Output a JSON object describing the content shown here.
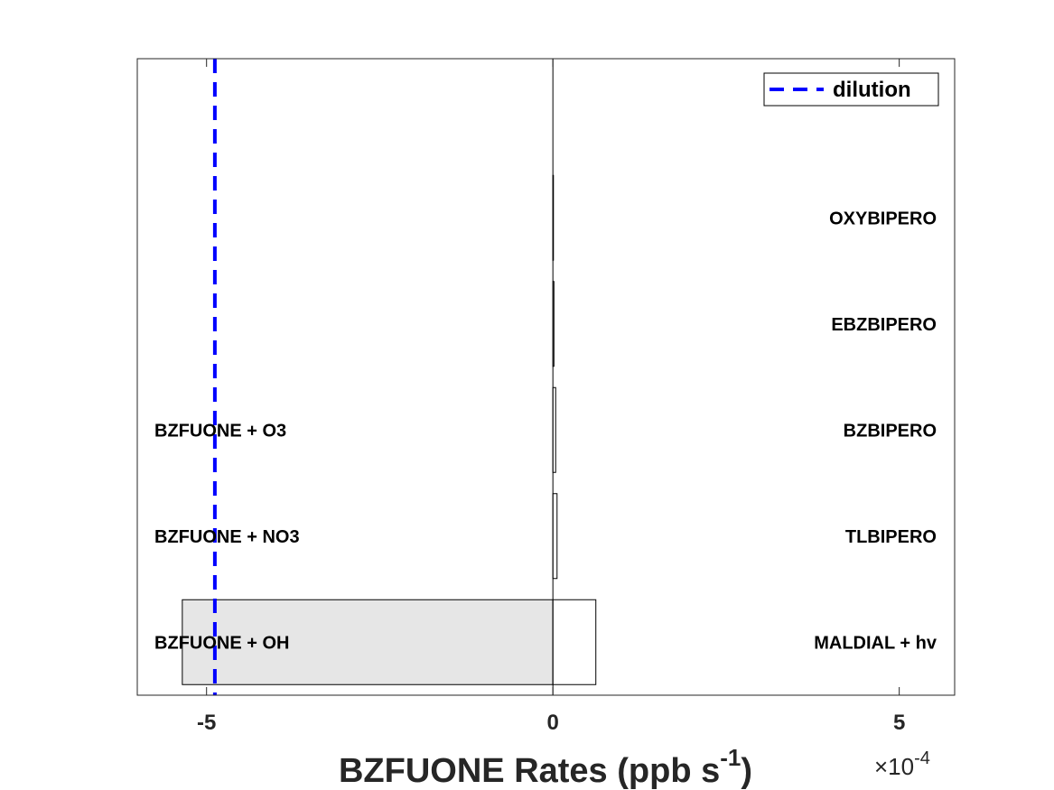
{
  "chart_data": {
    "type": "bar",
    "orientation": "horizontal-stacked",
    "x_scale_exponent_label": "×10",
    "x_scale_exponent_value": "-4",
    "xlabel_main": "BZFUONE Rates (ppb s",
    "xlabel_sup": "-1",
    "xlabel_close": ")",
    "xlim": [
      -0.0006,
      0.00058
    ],
    "xticks": [
      {
        "value": -0.0005,
        "label": "-5"
      },
      {
        "value": 0,
        "label": "0"
      },
      {
        "value": 0.0005,
        "label": "5"
      }
    ],
    "categories": [
      1,
      2,
      3,
      4,
      5,
      6
    ],
    "ylim": [
      0.5,
      6.5
    ],
    "series": [
      {
        "values": [
          -0.000535,
          0,
          0,
          0,
          0,
          0
        ],
        "color": "#e6e6e6"
      },
      {
        "values": [
          6.2e-05,
          6e-06,
          4e-06,
          1.5e-06,
          3e-07,
          0
        ],
        "color": "#ffffff"
      }
    ],
    "left_labels": [
      {
        "category": 1,
        "text": "BZFUONE + OH"
      },
      {
        "category": 2,
        "text": "BZFUONE + NO3"
      },
      {
        "category": 3,
        "text": "BZFUONE + O3"
      }
    ],
    "right_labels": [
      {
        "category": 1,
        "text": "MALDIAL + hv"
      },
      {
        "category": 2,
        "text": "TLBIPERO"
      },
      {
        "category": 3,
        "text": "BZBIPERO"
      },
      {
        "category": 4,
        "text": "EBZBIPERO"
      },
      {
        "category": 5,
        "text": "OXYBIPERO"
      }
    ],
    "dilution": {
      "value": -0.000488,
      "color": "#0000ff",
      "style": "dashed"
    },
    "legend": {
      "label": "dilution",
      "position": "top-right"
    },
    "grid": false,
    "zero_line": true
  }
}
